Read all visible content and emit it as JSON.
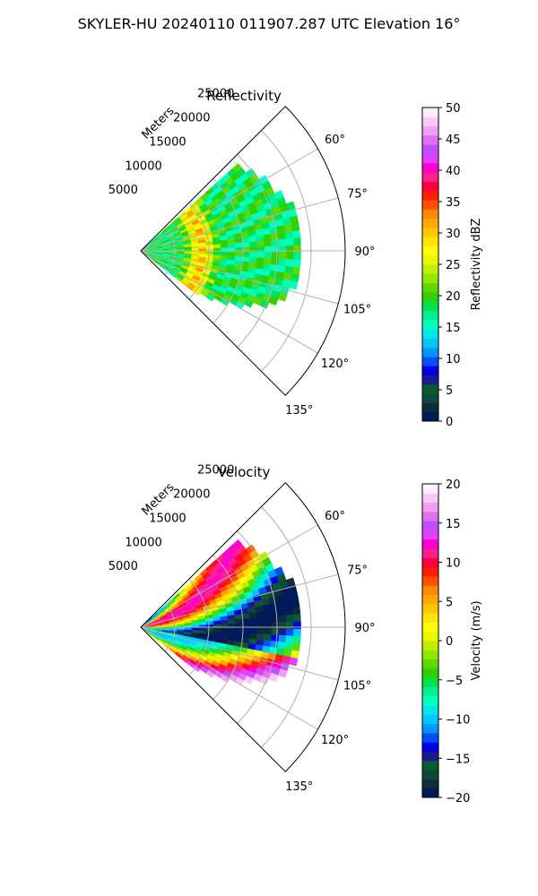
{
  "figure": {
    "suptitle": "SKYLER-HU  20240110  011907.287 UTC Elevation 16°"
  },
  "chart_data": [
    {
      "type": "polar-sector",
      "title": "Reflectivity",
      "radial_label": "Meters",
      "radial_ticks": [
        5000,
        10000,
        15000,
        20000,
        25000
      ],
      "radial_tick_labels": [
        "5000",
        "10000",
        "15000",
        "20000",
        "25000"
      ],
      "rmax": 30000,
      "azimuth_range_deg": [
        45,
        135
      ],
      "azimuth_ticks_deg": [
        60,
        75,
        90,
        105,
        120,
        135
      ],
      "azimuth_tick_labels": [
        "60°",
        "75°",
        "90°",
        "105°",
        "120°",
        "135°"
      ],
      "grid": true,
      "colorbar": {
        "label": "Reflectivity dBZ",
        "vmin": 0,
        "vmax": 50,
        "ticks": [
          0,
          5,
          10,
          15,
          20,
          25,
          30,
          35,
          40,
          45,
          50
        ],
        "tick_labels": [
          "0",
          "5",
          "10",
          "15",
          "20",
          "25",
          "30",
          "35",
          "40",
          "45",
          "50"
        ],
        "colors": [
          "#001a5a",
          "#0d2b3d",
          "#0b4a3a",
          "#0a5a30",
          "#1a1a8c",
          "#0000e6",
          "#0050ff",
          "#0096ff",
          "#00c8ff",
          "#00e6e6",
          "#00ffc0",
          "#00f090",
          "#00e050",
          "#30d000",
          "#60d800",
          "#90e800",
          "#c0f000",
          "#e8f800",
          "#ffff00",
          "#ffe600",
          "#ffc800",
          "#ffa800",
          "#ff8800",
          "#ff5000",
          "#ff1e00",
          "#ff0040",
          "#ff2090",
          "#ff00d0",
          "#e040ff",
          "#c050ff",
          "#e070f0",
          "#f0a0f0",
          "#f8c8f8",
          "#fff0ff"
        ]
      }
    },
    {
      "type": "polar-sector",
      "title": "Velocity",
      "radial_label": "Meters",
      "radial_ticks": [
        5000,
        10000,
        15000,
        20000,
        25000
      ],
      "radial_tick_labels": [
        "5000",
        "10000",
        "15000",
        "20000",
        "25000"
      ],
      "rmax": 30000,
      "azimuth_range_deg": [
        45,
        135
      ],
      "azimuth_ticks_deg": [
        60,
        75,
        90,
        105,
        120,
        135
      ],
      "azimuth_tick_labels": [
        "60°",
        "75°",
        "90°",
        "105°",
        "120°",
        "135°"
      ],
      "grid": true,
      "colorbar": {
        "label": "Velocity (m/s)",
        "vmin": -20,
        "vmax": 20,
        "ticks": [
          -20,
          -15,
          -10,
          -5,
          0,
          5,
          10,
          15,
          20
        ],
        "tick_labels": [
          "−20",
          "−15",
          "−10",
          "−5",
          "0",
          "5",
          "10",
          "15",
          "20"
        ],
        "colors": [
          "#001a5a",
          "#0d2b3d",
          "#0b4a3a",
          "#0a5a30",
          "#1a1a8c",
          "#0000e6",
          "#0050ff",
          "#0096ff",
          "#00c8ff",
          "#00e6e6",
          "#00ffc0",
          "#00f090",
          "#00e050",
          "#30d000",
          "#60d800",
          "#90e800",
          "#c0f000",
          "#e8f800",
          "#ffff00",
          "#ffe600",
          "#ffc800",
          "#ffa800",
          "#ff8800",
          "#ff5000",
          "#ff1e00",
          "#ff0040",
          "#ff2090",
          "#ff00d0",
          "#e040ff",
          "#c050ff",
          "#e070f0",
          "#f0a0f0",
          "#f8c8f8",
          "#fff0ff"
        ]
      }
    }
  ]
}
